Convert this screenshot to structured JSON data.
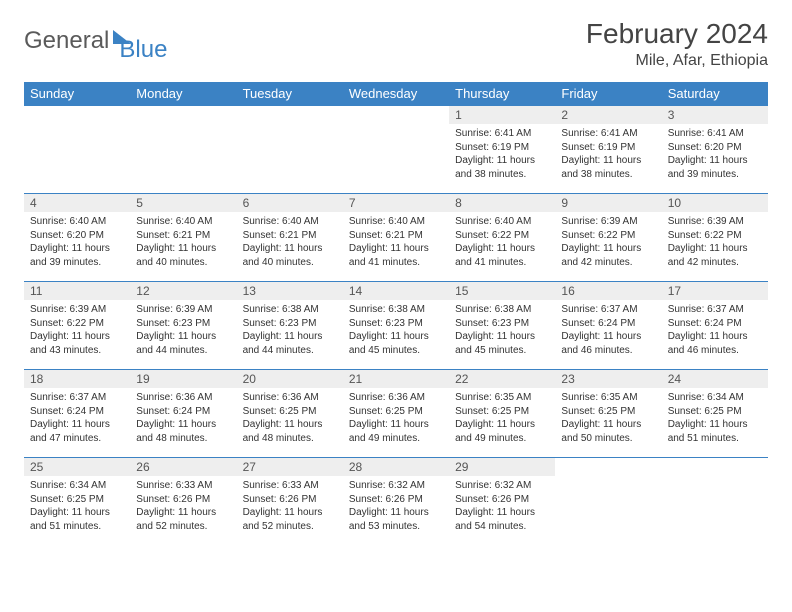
{
  "logo": {
    "text1": "General",
    "text2": "Blue"
  },
  "title": "February 2024",
  "location": "Mile, Afar, Ethiopia",
  "colors": {
    "accent": "#3b82c4",
    "header_bg": "#3b82c4",
    "daynum_bg": "#eeeeee"
  },
  "day_headers": [
    "Sunday",
    "Monday",
    "Tuesday",
    "Wednesday",
    "Thursday",
    "Friday",
    "Saturday"
  ],
  "weeks": [
    [
      null,
      null,
      null,
      null,
      {
        "n": "1",
        "sunrise": "Sunrise: 6:41 AM",
        "sunset": "Sunset: 6:19 PM",
        "day1": "Daylight: 11 hours",
        "day2": "and 38 minutes."
      },
      {
        "n": "2",
        "sunrise": "Sunrise: 6:41 AM",
        "sunset": "Sunset: 6:19 PM",
        "day1": "Daylight: 11 hours",
        "day2": "and 38 minutes."
      },
      {
        "n": "3",
        "sunrise": "Sunrise: 6:41 AM",
        "sunset": "Sunset: 6:20 PM",
        "day1": "Daylight: 11 hours",
        "day2": "and 39 minutes."
      }
    ],
    [
      {
        "n": "4",
        "sunrise": "Sunrise: 6:40 AM",
        "sunset": "Sunset: 6:20 PM",
        "day1": "Daylight: 11 hours",
        "day2": "and 39 minutes."
      },
      {
        "n": "5",
        "sunrise": "Sunrise: 6:40 AM",
        "sunset": "Sunset: 6:21 PM",
        "day1": "Daylight: 11 hours",
        "day2": "and 40 minutes."
      },
      {
        "n": "6",
        "sunrise": "Sunrise: 6:40 AM",
        "sunset": "Sunset: 6:21 PM",
        "day1": "Daylight: 11 hours",
        "day2": "and 40 minutes."
      },
      {
        "n": "7",
        "sunrise": "Sunrise: 6:40 AM",
        "sunset": "Sunset: 6:21 PM",
        "day1": "Daylight: 11 hours",
        "day2": "and 41 minutes."
      },
      {
        "n": "8",
        "sunrise": "Sunrise: 6:40 AM",
        "sunset": "Sunset: 6:22 PM",
        "day1": "Daylight: 11 hours",
        "day2": "and 41 minutes."
      },
      {
        "n": "9",
        "sunrise": "Sunrise: 6:39 AM",
        "sunset": "Sunset: 6:22 PM",
        "day1": "Daylight: 11 hours",
        "day2": "and 42 minutes."
      },
      {
        "n": "10",
        "sunrise": "Sunrise: 6:39 AM",
        "sunset": "Sunset: 6:22 PM",
        "day1": "Daylight: 11 hours",
        "day2": "and 42 minutes."
      }
    ],
    [
      {
        "n": "11",
        "sunrise": "Sunrise: 6:39 AM",
        "sunset": "Sunset: 6:22 PM",
        "day1": "Daylight: 11 hours",
        "day2": "and 43 minutes."
      },
      {
        "n": "12",
        "sunrise": "Sunrise: 6:39 AM",
        "sunset": "Sunset: 6:23 PM",
        "day1": "Daylight: 11 hours",
        "day2": "and 44 minutes."
      },
      {
        "n": "13",
        "sunrise": "Sunrise: 6:38 AM",
        "sunset": "Sunset: 6:23 PM",
        "day1": "Daylight: 11 hours",
        "day2": "and 44 minutes."
      },
      {
        "n": "14",
        "sunrise": "Sunrise: 6:38 AM",
        "sunset": "Sunset: 6:23 PM",
        "day1": "Daylight: 11 hours",
        "day2": "and 45 minutes."
      },
      {
        "n": "15",
        "sunrise": "Sunrise: 6:38 AM",
        "sunset": "Sunset: 6:23 PM",
        "day1": "Daylight: 11 hours",
        "day2": "and 45 minutes."
      },
      {
        "n": "16",
        "sunrise": "Sunrise: 6:37 AM",
        "sunset": "Sunset: 6:24 PM",
        "day1": "Daylight: 11 hours",
        "day2": "and 46 minutes."
      },
      {
        "n": "17",
        "sunrise": "Sunrise: 6:37 AM",
        "sunset": "Sunset: 6:24 PM",
        "day1": "Daylight: 11 hours",
        "day2": "and 46 minutes."
      }
    ],
    [
      {
        "n": "18",
        "sunrise": "Sunrise: 6:37 AM",
        "sunset": "Sunset: 6:24 PM",
        "day1": "Daylight: 11 hours",
        "day2": "and 47 minutes."
      },
      {
        "n": "19",
        "sunrise": "Sunrise: 6:36 AM",
        "sunset": "Sunset: 6:24 PM",
        "day1": "Daylight: 11 hours",
        "day2": "and 48 minutes."
      },
      {
        "n": "20",
        "sunrise": "Sunrise: 6:36 AM",
        "sunset": "Sunset: 6:25 PM",
        "day1": "Daylight: 11 hours",
        "day2": "and 48 minutes."
      },
      {
        "n": "21",
        "sunrise": "Sunrise: 6:36 AM",
        "sunset": "Sunset: 6:25 PM",
        "day1": "Daylight: 11 hours",
        "day2": "and 49 minutes."
      },
      {
        "n": "22",
        "sunrise": "Sunrise: 6:35 AM",
        "sunset": "Sunset: 6:25 PM",
        "day1": "Daylight: 11 hours",
        "day2": "and 49 minutes."
      },
      {
        "n": "23",
        "sunrise": "Sunrise: 6:35 AM",
        "sunset": "Sunset: 6:25 PM",
        "day1": "Daylight: 11 hours",
        "day2": "and 50 minutes."
      },
      {
        "n": "24",
        "sunrise": "Sunrise: 6:34 AM",
        "sunset": "Sunset: 6:25 PM",
        "day1": "Daylight: 11 hours",
        "day2": "and 51 minutes."
      }
    ],
    [
      {
        "n": "25",
        "sunrise": "Sunrise: 6:34 AM",
        "sunset": "Sunset: 6:25 PM",
        "day1": "Daylight: 11 hours",
        "day2": "and 51 minutes."
      },
      {
        "n": "26",
        "sunrise": "Sunrise: 6:33 AM",
        "sunset": "Sunset: 6:26 PM",
        "day1": "Daylight: 11 hours",
        "day2": "and 52 minutes."
      },
      {
        "n": "27",
        "sunrise": "Sunrise: 6:33 AM",
        "sunset": "Sunset: 6:26 PM",
        "day1": "Daylight: 11 hours",
        "day2": "and 52 minutes."
      },
      {
        "n": "28",
        "sunrise": "Sunrise: 6:32 AM",
        "sunset": "Sunset: 6:26 PM",
        "day1": "Daylight: 11 hours",
        "day2": "and 53 minutes."
      },
      {
        "n": "29",
        "sunrise": "Sunrise: 6:32 AM",
        "sunset": "Sunset: 6:26 PM",
        "day1": "Daylight: 11 hours",
        "day2": "and 54 minutes."
      },
      null,
      null
    ]
  ]
}
